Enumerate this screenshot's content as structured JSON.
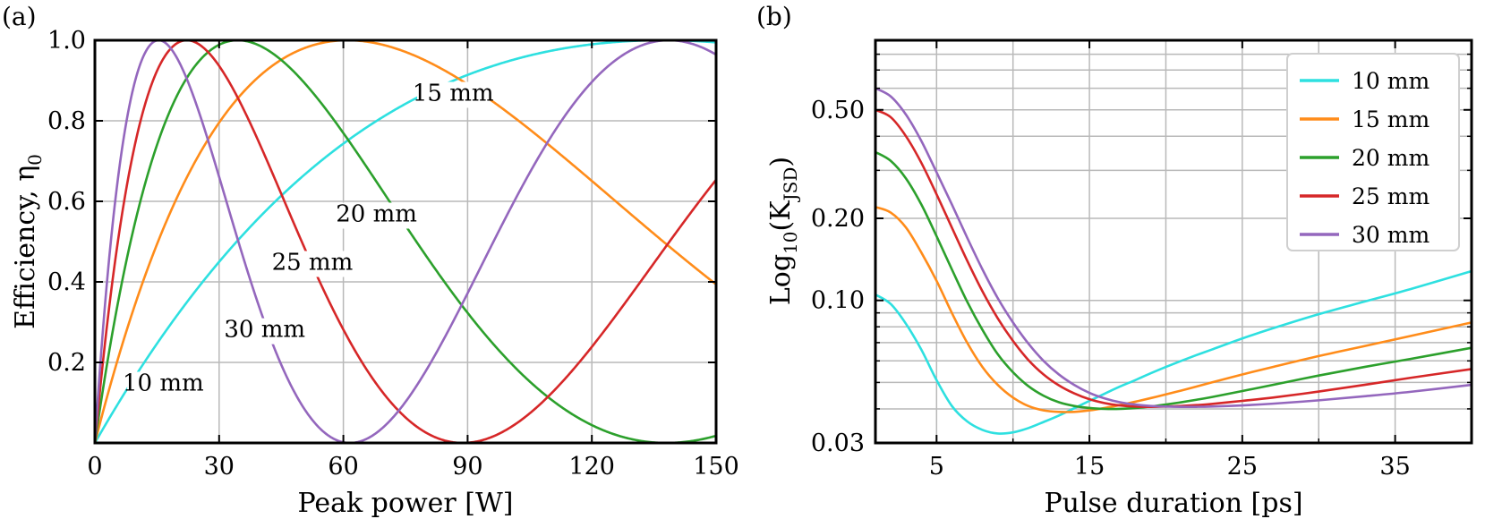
{
  "chart_data": [
    {
      "type": "line",
      "panel_label": "(a)",
      "xlabel": "Peak power [W]",
      "ylabel": "Efficiency, η",
      "ylabel_subscript": "0",
      "xlim": [
        0,
        150
      ],
      "ylim": [
        0,
        1.0
      ],
      "xticks": [
        0,
        30,
        60,
        90,
        120,
        150
      ],
      "xtick_labels": [
        "0",
        "30",
        "60",
        "90",
        "120",
        "150"
      ],
      "yticks": [
        0.2,
        0.4,
        0.6,
        0.8,
        1.0
      ],
      "ytick_labels": [
        "0.2",
        "0.4",
        "0.6",
        "0.8",
        "1.0"
      ],
      "grid": true,
      "model": "sin^2",
      "series": [
        {
          "name": "10 mm",
          "color": "#2ee0e0",
          "peak_power_at_full_efficiency": 137
        },
        {
          "name": "15 mm",
          "color": "#ff8c1a",
          "peak_power_at_full_efficiency": 61
        },
        {
          "name": "20 mm",
          "color": "#2ca02c",
          "peak_power_at_full_efficiency": 34.5
        },
        {
          "name": "25 mm",
          "color": "#d62728",
          "peak_power_at_full_efficiency": 22.2
        },
        {
          "name": "30 mm",
          "color": "#9467bd",
          "peak_power_at_full_efficiency": 15.4
        }
      ],
      "annotations": [
        "10 mm",
        "15 mm",
        "20 mm",
        "25 mm",
        "30 mm"
      ]
    },
    {
      "type": "line",
      "panel_label": "(b)",
      "xlabel": "Pulse duration [ps]",
      "ylabel": "Log",
      "ylabel_sub1": "10",
      "ylabel_mid": "(K",
      "ylabel_sub2": "JSD",
      "ylabel_end": ")",
      "xlim": [
        1,
        40
      ],
      "ylim": [
        0.03,
        0.9
      ],
      "yscale": "log",
      "xticks": [
        5,
        15,
        25,
        35
      ],
      "xtick_labels": [
        "5",
        "15",
        "25",
        "35"
      ],
      "x_minor_gridlines": [
        10,
        20,
        30
      ],
      "yticks": [
        0.03,
        0.1,
        0.2,
        0.5
      ],
      "ytick_labels": [
        "0.03",
        "0.10",
        "0.20",
        "0.50"
      ],
      "grid": true,
      "legend": "top-right",
      "x": [
        1,
        2,
        3,
        4,
        5,
        6,
        7,
        8,
        9,
        10,
        11,
        12,
        13,
        14,
        15,
        16,
        17,
        18,
        19,
        20,
        21,
        22,
        23,
        25,
        27,
        30,
        33,
        36,
        40
      ],
      "series": [
        {
          "name": "10 mm",
          "color": "#2ee0e0",
          "values": [
            0.105,
            0.097,
            0.082,
            0.066,
            0.051,
            0.041,
            0.036,
            0.0335,
            0.0325,
            0.0328,
            0.034,
            0.0358,
            0.0378,
            0.0402,
            0.0428,
            0.0455,
            0.0483,
            0.051,
            0.054,
            0.057,
            0.06,
            0.063,
            0.066,
            0.0725,
            0.079,
            0.089,
            0.099,
            0.11,
            0.128
          ]
        },
        {
          "name": "15 mm",
          "color": "#ff8c1a",
          "values": [
            0.22,
            0.21,
            0.185,
            0.15,
            0.118,
            0.09,
            0.07,
            0.057,
            0.049,
            0.044,
            0.041,
            0.0395,
            0.039,
            0.039,
            0.0395,
            0.0403,
            0.0413,
            0.0425,
            0.0438,
            0.0452,
            0.0467,
            0.0483,
            0.05,
            0.0535,
            0.057,
            0.0625,
            0.068,
            0.074,
            0.083
          ]
        },
        {
          "name": "20 mm",
          "color": "#2ca02c",
          "values": [
            0.35,
            0.325,
            0.28,
            0.225,
            0.172,
            0.13,
            0.099,
            0.078,
            0.0635,
            0.0545,
            0.0485,
            0.0447,
            0.0423,
            0.041,
            0.0403,
            0.04,
            0.04,
            0.0403,
            0.0408,
            0.0415,
            0.0423,
            0.0432,
            0.0442,
            0.0465,
            0.049,
            0.053,
            0.057,
            0.061,
            0.067
          ]
        },
        {
          "name": "25 mm",
          "color": "#d62728",
          "values": [
            0.5,
            0.47,
            0.4,
            0.32,
            0.245,
            0.185,
            0.14,
            0.108,
            0.086,
            0.071,
            0.0605,
            0.0535,
            0.0488,
            0.0456,
            0.0434,
            0.042,
            0.0412,
            0.0408,
            0.0407,
            0.0408,
            0.041,
            0.0413,
            0.0417,
            0.0428,
            0.044,
            0.0463,
            0.049,
            0.052,
            0.056
          ]
        },
        {
          "name": "30 mm",
          "color": "#9467bd",
          "values": [
            0.6,
            0.56,
            0.48,
            0.385,
            0.295,
            0.225,
            0.17,
            0.13,
            0.102,
            0.083,
            0.0695,
            0.06,
            0.0535,
            0.049,
            0.0458,
            0.0437,
            0.0423,
            0.0415,
            0.041,
            0.0408,
            0.0407,
            0.0407,
            0.0408,
            0.0412,
            0.0418,
            0.043,
            0.0445,
            0.0462,
            0.049
          ]
        }
      ]
    }
  ]
}
